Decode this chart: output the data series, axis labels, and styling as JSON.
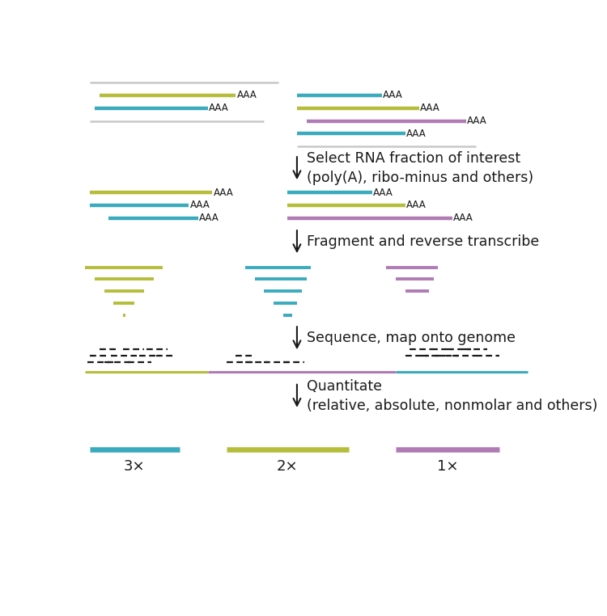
{
  "colors": {
    "yg": "#b5bd3a",
    "tl": "#3aabbd",
    "pu": "#b07ab5",
    "gr": "#c8c8c8",
    "black": "#1a1a1a"
  },
  "lw_main": 3.2,
  "lw_frag": 2.8,
  "lw_genome": 2.2,
  "lw_dash": 1.6,
  "lw_gray": 1.8,
  "fs_aaa": 8.5,
  "fs_step": 12.5,
  "fs_label": 13,
  "text": {
    "step1": "Select RNA fraction of interest\n(poly(A), ribo-minus and others)",
    "step2": "Fragment and reverse transcribe",
    "step3": "Sequence, map onto genome",
    "step4": "Quantitate\n(relative, absolute, nonmolar and others)",
    "lbl3": "3×",
    "lbl2": "2×",
    "lbl1": "1×"
  }
}
